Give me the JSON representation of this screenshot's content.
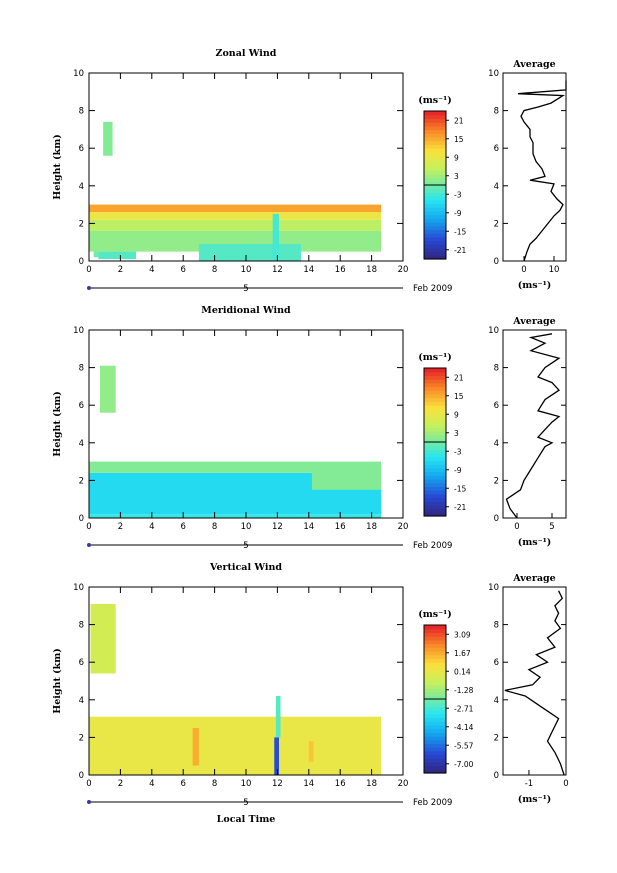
{
  "figure": {
    "xlabel": "Local Time",
    "date_label": "Feb 2009",
    "day_label": "5"
  },
  "chart_data": [
    {
      "type": "heatmap",
      "name": "zonal",
      "title": "Zonal Wind",
      "ylabel": "Height (km)",
      "xlim": [
        0,
        20
      ],
      "ylim": [
        0,
        10
      ],
      "xticks": [
        "0",
        "2",
        "4",
        "6",
        "8",
        "10",
        "12",
        "14",
        "16",
        "18",
        "20"
      ],
      "yticks": [
        "0",
        "2",
        "4",
        "6",
        "8",
        "10"
      ],
      "colorbar": {
        "unit": "(ms⁻¹)",
        "labels": [
          "21",
          "15",
          "9",
          "3",
          "-3",
          "-9",
          "-15",
          "-21"
        ],
        "range": [
          -24,
          24
        ]
      },
      "cells": [
        {
          "x0": 0.3,
          "x1": 0.6,
          "y0": 0.2,
          "y1": 1.0,
          "v": 0
        },
        {
          "x0": 0.6,
          "x1": 3.0,
          "y0": 0.1,
          "y1": 0.5,
          "v": -2
        },
        {
          "x0": 0.0,
          "x1": 18.6,
          "y0": 0.5,
          "y1": 1.6,
          "v": 2
        },
        {
          "x0": 0.0,
          "x1": 18.6,
          "y0": 1.6,
          "y1": 2.2,
          "v": 5
        },
        {
          "x0": 0.0,
          "x1": 18.6,
          "y0": 2.2,
          "y1": 2.6,
          "v": 10
        },
        {
          "x0": 0.0,
          "x1": 18.6,
          "y0": 2.6,
          "y1": 3.0,
          "v": 16
        },
        {
          "x0": 7.0,
          "x1": 13.5,
          "y0": 0.0,
          "y1": 0.9,
          "v": -2
        },
        {
          "x0": 0.9,
          "x1": 1.5,
          "y0": 5.6,
          "y1": 7.4,
          "v": 1
        },
        {
          "x0": 11.7,
          "x1": 12.1,
          "y0": 0.0,
          "y1": 2.5,
          "v": -3
        }
      ],
      "avg_panel": {
        "title": "Average",
        "xlabel": "(ms⁻¹)",
        "xlim": [
          -7,
          14
        ],
        "ylim": [
          0,
          10
        ],
        "xticks": [
          "0",
          "10"
        ],
        "yticks": [
          "0",
          "2",
          "4",
          "6",
          "8",
          "10"
        ],
        "profile": [
          [
            0,
            0.0
          ],
          [
            1,
            0.5
          ],
          [
            2,
            0.9
          ],
          [
            4,
            1.2
          ],
          [
            6,
            1.6
          ],
          [
            8,
            2.0
          ],
          [
            10,
            2.4
          ],
          [
            12,
            2.7
          ],
          [
            13,
            3.0
          ],
          [
            11,
            3.3
          ],
          [
            9,
            3.7
          ],
          [
            10,
            4.1
          ],
          [
            2,
            4.3
          ],
          [
            7,
            4.5
          ],
          [
            6,
            4.9
          ],
          [
            4,
            5.3
          ],
          [
            3,
            5.7
          ],
          [
            3,
            6.3
          ],
          [
            2,
            6.6
          ],
          [
            2,
            7.0
          ],
          [
            0,
            7.4
          ],
          [
            -1,
            7.7
          ],
          [
            0,
            8.0
          ],
          [
            5,
            8.2
          ],
          [
            9,
            8.4
          ],
          [
            13,
            8.8
          ],
          [
            -2,
            8.9
          ],
          [
            14,
            9.1
          ],
          [
            14,
            9.6
          ]
        ]
      }
    },
    {
      "type": "heatmap",
      "name": "meridional",
      "title": "Meridional Wind",
      "ylabel": "Height (km)",
      "xlim": [
        0,
        20
      ],
      "ylim": [
        0,
        10
      ],
      "xticks": [
        "0",
        "2",
        "4",
        "6",
        "8",
        "10",
        "12",
        "14",
        "16",
        "18",
        "20"
      ],
      "yticks": [
        "0",
        "2",
        "4",
        "6",
        "8",
        "10"
      ],
      "colorbar": {
        "unit": "(ms⁻¹)",
        "labels": [
          "21",
          "15",
          "9",
          "3",
          "-3",
          "-9",
          "-15",
          "-21"
        ],
        "range": [
          -24,
          24
        ]
      },
      "cells": [
        {
          "x0": 0.0,
          "x1": 18.6,
          "y0": 0.2,
          "y1": 2.4,
          "v": -6
        },
        {
          "x0": 0.0,
          "x1": 18.6,
          "y0": 2.4,
          "y1": 3.0,
          "v": 1
        },
        {
          "x0": 0.0,
          "x1": 18.6,
          "y0": 0.0,
          "y1": 0.2,
          "v": -4
        },
        {
          "x0": 0.7,
          "x1": 1.7,
          "y0": 5.6,
          "y1": 8.1,
          "v": 2
        },
        {
          "x0": 14.2,
          "x1": 18.6,
          "y0": 1.5,
          "y1": 2.9,
          "v": 1
        }
      ],
      "avg_panel": {
        "title": "Average",
        "xlabel": "(ms⁻¹)",
        "xlim": [
          -2,
          7
        ],
        "ylim": [
          0,
          10
        ],
        "xticks": [
          "0",
          "5"
        ],
        "yticks": [
          "0",
          "2",
          "4",
          "6",
          "8",
          "10"
        ],
        "profile": [
          [
            0,
            0.0
          ],
          [
            -1,
            0.5
          ],
          [
            -1.5,
            1.0
          ],
          [
            0.5,
            1.5
          ],
          [
            1,
            2.0
          ],
          [
            2,
            2.6
          ],
          [
            3,
            3.2
          ],
          [
            4,
            3.8
          ],
          [
            5,
            4.0
          ],
          [
            3,
            4.3
          ],
          [
            4,
            4.7
          ],
          [
            5,
            5.1
          ],
          [
            6,
            5.4
          ],
          [
            3,
            5.7
          ],
          [
            4,
            6.3
          ],
          [
            6,
            6.8
          ],
          [
            5,
            7.2
          ],
          [
            3,
            7.5
          ],
          [
            4,
            8.0
          ],
          [
            6,
            8.5
          ],
          [
            2,
            8.9
          ],
          [
            4,
            9.3
          ],
          [
            2,
            9.6
          ],
          [
            5,
            9.8
          ]
        ]
      }
    },
    {
      "type": "heatmap",
      "name": "vertical",
      "title": "Vertical Wind",
      "ylabel": "Height (km)",
      "xlim": [
        0,
        20
      ],
      "ylim": [
        0,
        10
      ],
      "xticks": [
        "0",
        "2",
        "4",
        "6",
        "8",
        "10",
        "12",
        "14",
        "16",
        "18",
        "20"
      ],
      "yticks": [
        "0",
        "2",
        "4",
        "6",
        "8",
        "10"
      ],
      "colorbar": {
        "unit": "(ms⁻¹)",
        "labels": [
          "3.09",
          "1.67",
          "0.14",
          "-1.28",
          "-2.71",
          "-4.14",
          "-5.57",
          "-7.00"
        ],
        "range": [
          -7.7,
          3.8
        ]
      },
      "cells": [
        {
          "x0": 0.0,
          "x1": 18.6,
          "y0": 0.0,
          "y1": 3.1,
          "v": 0.3
        },
        {
          "x0": 0.1,
          "x1": 1.7,
          "y0": 5.4,
          "y1": 9.1,
          "v": -0.3
        },
        {
          "x0": 6.6,
          "x1": 7.0,
          "y0": 0.5,
          "y1": 2.5,
          "v": 1.7
        },
        {
          "x0": 11.8,
          "x1": 12.1,
          "y0": 0.0,
          "y1": 2.0,
          "v": -6.2
        },
        {
          "x0": 11.9,
          "x1": 12.2,
          "y0": 2.0,
          "y1": 4.2,
          "v": -2.4
        },
        {
          "x0": 14.0,
          "x1": 14.3,
          "y0": 0.7,
          "y1": 1.8,
          "v": 1.3
        }
      ],
      "avg_panel": {
        "title": "Average",
        "xlabel": "(ms⁻¹)",
        "xlim": [
          -1.7,
          0
        ],
        "ylim": [
          0,
          10
        ],
        "xticks": [
          "-1",
          "0"
        ],
        "yticks": [
          "0",
          "2",
          "4",
          "6",
          "8",
          "10"
        ],
        "profile": [
          [
            -0.05,
            0.0
          ],
          [
            -0.15,
            0.6
          ],
          [
            -0.3,
            1.2
          ],
          [
            -0.5,
            1.8
          ],
          [
            -0.35,
            2.4
          ],
          [
            -0.2,
            3.0
          ],
          [
            -0.5,
            3.4
          ],
          [
            -0.8,
            3.8
          ],
          [
            -1.1,
            4.2
          ],
          [
            -1.65,
            4.5
          ],
          [
            -0.9,
            4.8
          ],
          [
            -0.7,
            5.2
          ],
          [
            -1.0,
            5.6
          ],
          [
            -0.5,
            6.0
          ],
          [
            -0.8,
            6.4
          ],
          [
            -0.3,
            6.8
          ],
          [
            -0.5,
            7.3
          ],
          [
            -0.15,
            7.8
          ],
          [
            -0.3,
            8.2
          ],
          [
            -0.2,
            8.6
          ],
          [
            -0.3,
            9.0
          ],
          [
            -0.1,
            9.4
          ],
          [
            -0.2,
            9.8
          ]
        ]
      }
    }
  ]
}
